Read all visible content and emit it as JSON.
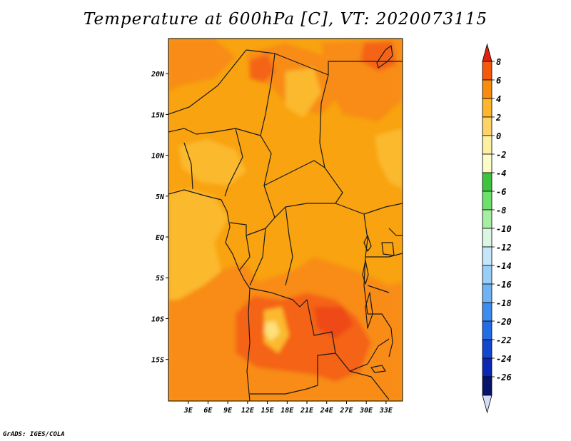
{
  "title": "Temperature at 600hPa [C], VT: 2020073115",
  "credit": "GrADS: IGES/COLA",
  "map": {
    "lat_ticks": [
      {
        "label": "20N",
        "value": 20
      },
      {
        "label": "15N",
        "value": 15
      },
      {
        "label": "10N",
        "value": 10
      },
      {
        "label": "5N",
        "value": 5
      },
      {
        "label": "EQ",
        "value": 0
      },
      {
        "label": "5S",
        "value": -5
      },
      {
        "label": "10S",
        "value": -10
      },
      {
        "label": "15S",
        "value": -15
      }
    ],
    "lon_ticks": [
      {
        "label": "3E",
        "value": 3
      },
      {
        "label": "6E",
        "value": 6
      },
      {
        "label": "9E",
        "value": 9
      },
      {
        "label": "12E",
        "value": 12
      },
      {
        "label": "15E",
        "value": 15
      },
      {
        "label": "18E",
        "value": 18
      },
      {
        "label": "21E",
        "value": 21
      },
      {
        "label": "24E",
        "value": 24
      },
      {
        "label": "27E",
        "value": 27
      },
      {
        "label": "30E",
        "value": 30
      },
      {
        "label": "33E",
        "value": 33
      }
    ]
  },
  "colorbar": {
    "labels": [
      "8",
      "6",
      "4",
      "2",
      "0",
      "-2",
      "-4",
      "-6",
      "-8",
      "-10",
      "-12",
      "-14",
      "-16",
      "-18",
      "-20",
      "-22",
      "-24",
      "-26"
    ],
    "colors": [
      "#e0230f",
      "#f55a0a",
      "#f98c0e",
      "#fdb62d",
      "#fed468",
      "#fef0a0",
      "#fdfcc8",
      "#3ec43c",
      "#6ee06c",
      "#a6eea2",
      "#dcf6e4",
      "#c4e6fa",
      "#98cef8",
      "#6eb4f4",
      "#3e8ced",
      "#226ce6",
      "#1248cf",
      "#0a28b4",
      "#08146a"
    ],
    "low_arrow_color": "#d6ddf8"
  }
}
